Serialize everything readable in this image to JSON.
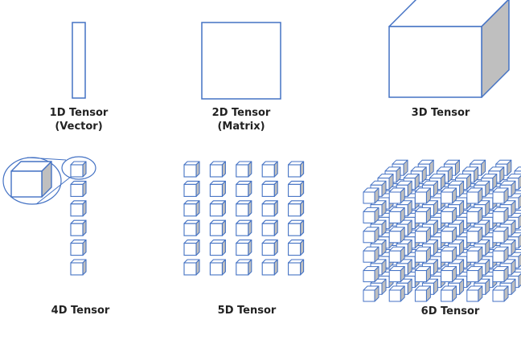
{
  "colors": {
    "outline": "#4472C4",
    "face": "#ffffff",
    "side": "#bfbfbf"
  },
  "tensors": [
    {
      "label": "1D Tensor",
      "sublabel": "(Vector)",
      "shape": "vector"
    },
    {
      "label": "2D Tensor",
      "sublabel": "(Matrix)",
      "shape": "matrix"
    },
    {
      "label": "3D Tensor",
      "sublabel": "",
      "shape": "cube"
    },
    {
      "label": "4D Tensor",
      "sublabel": "",
      "shape": "column of 6 cubes"
    },
    {
      "label": "5D Tensor",
      "sublabel": "",
      "shape": "6 x 5 grid of cubes"
    },
    {
      "label": "6D Tensor",
      "sublabel": "",
      "shape": "6 x 6 x 5 stack of cubes"
    }
  ]
}
